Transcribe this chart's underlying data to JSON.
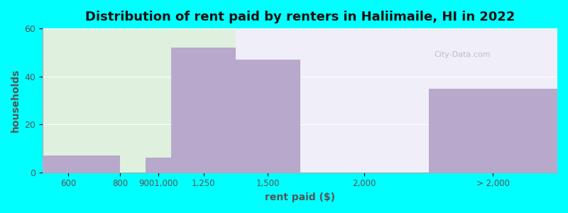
{
  "title": "Distribution of rent paid by renters in Haliimaile, HI in 2022",
  "xlabel": "rent paid ($)",
  "ylabel": "households",
  "bar_color": "#b8a9cc",
  "background_color": "#00ffff",
  "plot_bg_left": "#dff0df",
  "plot_bg_right": "#f0eef8",
  "ylim": [
    0,
    60
  ],
  "yticks": [
    0,
    20,
    40,
    60
  ],
  "title_fontsize": 13,
  "label_fontsize": 10,
  "xtick_labels": [
    "600",
    "800",
    "9001,000",
    "1,250",
    "1,500",
    "2,000",
    "> 2,000"
  ],
  "xtick_positions": [
    600,
    800,
    950,
    1125,
    1375,
    1750,
    2250
  ],
  "bar_lefts": [
    500,
    850,
    900,
    1000,
    1250,
    1500,
    2000
  ],
  "bar_rights": [
    800,
    900,
    1000,
    1250,
    1500,
    2000,
    2500
  ],
  "bar_heights": [
    7,
    0,
    6,
    52,
    47,
    0,
    35
  ],
  "bg_split_x": 1250,
  "xlim": [
    500,
    2500
  ]
}
